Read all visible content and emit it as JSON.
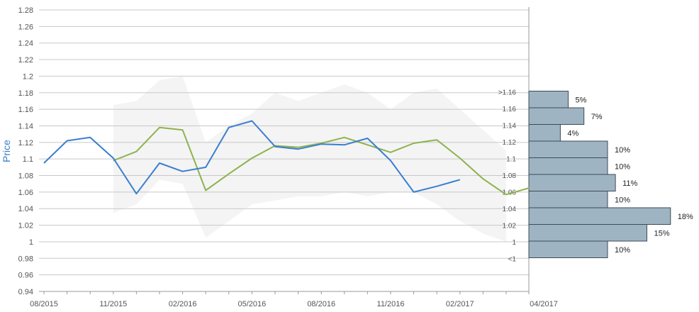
{
  "chart_data": {
    "type": "line",
    "ylabel": "Price",
    "ylim": [
      0.94,
      1.28
    ],
    "y_ticks": [
      "0.94",
      "0.96",
      "0.98",
      "1",
      "1.02",
      "1.04",
      "1.06",
      "1.08",
      "1.1",
      "1.12",
      "1.14",
      "1.16",
      "1.18",
      "1.2",
      "1.22",
      "1.24",
      "1.26",
      "1.28"
    ],
    "x_ticks": [
      {
        "label": "08/2015",
        "month": 0
      },
      {
        "label": "11/2015",
        "month": 3
      },
      {
        "label": "02/2016",
        "month": 6
      },
      {
        "label": "05/2016",
        "month": 9
      },
      {
        "label": "08/2016",
        "month": 12
      },
      {
        "label": "11/2016",
        "month": 15
      },
      {
        "label": "02/2017",
        "month": 18
      },
      {
        "label": "04/2017",
        "month": 20
      }
    ],
    "band": {
      "x": [
        3,
        4,
        5,
        6,
        7,
        8,
        9,
        10,
        11,
        12,
        13,
        14,
        15,
        16,
        17,
        18,
        19,
        20
      ],
      "upper": [
        1.165,
        1.17,
        1.195,
        1.2,
        1.12,
        1.14,
        1.155,
        1.18,
        1.17,
        1.18,
        1.19,
        1.18,
        1.16,
        1.18,
        1.185,
        1.16,
        1.135,
        1.11
      ],
      "lower": [
        1.035,
        1.045,
        1.075,
        1.07,
        1.005,
        1.025,
        1.045,
        1.05,
        1.055,
        1.055,
        1.06,
        1.055,
        1.06,
        1.06,
        1.045,
        1.025,
        1.01,
        1.0
      ]
    },
    "series": [
      {
        "color": "#3a7fd0",
        "x": [
          0,
          1,
          2,
          3,
          4,
          5,
          6,
          7,
          8,
          9,
          10,
          11,
          12,
          13,
          14,
          15,
          16,
          17,
          18
        ],
        "values": [
          1.095,
          1.122,
          1.126,
          1.101,
          1.058,
          1.095,
          1.085,
          1.09,
          1.138,
          1.146,
          1.115,
          1.112,
          1.118,
          1.117,
          1.125,
          1.098,
          1.06,
          1.067,
          1.075
        ]
      },
      {
        "color": "#8db24e",
        "x": [
          3,
          4,
          5,
          6,
          7,
          8,
          9,
          10,
          11,
          12,
          13,
          14,
          15,
          16,
          17,
          18,
          19,
          20
        ],
        "values": [
          1.098,
          1.109,
          1.138,
          1.135,
          1.062,
          1.082,
          1.101,
          1.116,
          1.114,
          1.119,
          1.126,
          1.117,
          1.108,
          1.119,
          1.123,
          1.101,
          1.076,
          1.057
        ]
      }
    ],
    "tail": {
      "color": "#8db24e",
      "x": [
        20,
        21
      ],
      "values": [
        1.057,
        1.065
      ]
    },
    "histogram": {
      "bins": [
        {
          "label": ">1.16",
          "value": 5,
          "text": "5%"
        },
        {
          "label": "1.16",
          "value": 7,
          "text": "7%"
        },
        {
          "label": "1.14",
          "value": 4,
          "text": "4%"
        },
        {
          "label": "1.12",
          "value": 10,
          "text": "10%"
        },
        {
          "label": "1.1",
          "value": 10,
          "text": "10%"
        },
        {
          "label": "1.08",
          "value": 11,
          "text": "11%"
        },
        {
          "label": "1.06",
          "value": 10,
          "text": "10%"
        },
        {
          "label": "1.04",
          "value": 18,
          "text": "18%"
        },
        {
          "label": "1.02",
          "value": 15,
          "text": "15%"
        },
        {
          "label": "1",
          "value": 10,
          "text": "10%"
        },
        {
          "label": "<1",
          "value": 0,
          "text": ""
        }
      ],
      "color": "#9fb4c2",
      "edge": "#3d4a55"
    },
    "grid": true,
    "colors": {
      "band": "#f4f4f4",
      "grid": "#c8c8c8",
      "axis": "#999999"
    }
  }
}
